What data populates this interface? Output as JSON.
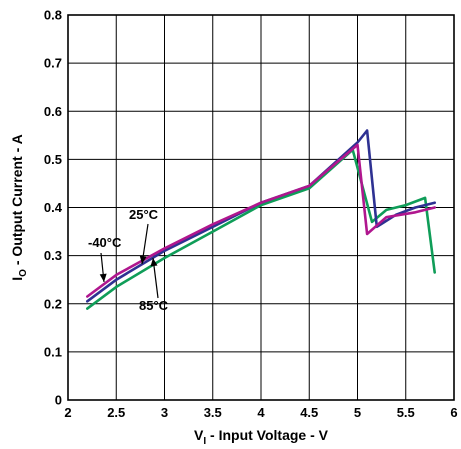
{
  "chart_data": {
    "type": "line",
    "xlabel_main": "V",
    "xlabel_sub": "I",
    "xlabel_rest": " - Input Voltage - V",
    "ylabel_main": "I",
    "ylabel_sub": "O",
    "ylabel_rest": " - Output Current - A",
    "xlim": [
      2,
      6
    ],
    "ylim": [
      0,
      0.8
    ],
    "x_ticks": [
      "2",
      "2.5",
      "3",
      "3.5",
      "4",
      "4.5",
      "5",
      "5.5",
      "6"
    ],
    "y_ticks": [
      "0",
      "0.1",
      "0.2",
      "0.3",
      "0.4",
      "0.5",
      "0.6",
      "0.7",
      "0.8"
    ],
    "grid": true,
    "series": [
      {
        "name": "-40°C",
        "color": "#b0168e",
        "x": [
          2.2,
          2.5,
          3.0,
          3.5,
          4.0,
          4.5,
          5.0,
          5.1,
          5.3,
          5.6,
          5.8
        ],
        "y": [
          0.215,
          0.26,
          0.315,
          0.365,
          0.41,
          0.445,
          0.53,
          0.345,
          0.38,
          0.39,
          0.4
        ]
      },
      {
        "name": "25°C",
        "color": "#2e3192",
        "x": [
          2.2,
          2.5,
          3.0,
          3.5,
          4.0,
          4.5,
          5.0,
          5.1,
          5.2,
          5.4,
          5.6,
          5.8
        ],
        "y": [
          0.205,
          0.25,
          0.31,
          0.36,
          0.41,
          0.445,
          0.535,
          0.56,
          0.36,
          0.385,
          0.4,
          0.41
        ]
      },
      {
        "name": "85°C",
        "color": "#0f9d58",
        "x": [
          2.2,
          2.5,
          3.0,
          3.5,
          4.0,
          4.5,
          4.95,
          5.15,
          5.3,
          5.5,
          5.7,
          5.8
        ],
        "y": [
          0.19,
          0.235,
          0.295,
          0.35,
          0.405,
          0.44,
          0.52,
          0.37,
          0.395,
          0.405,
          0.42,
          0.265
        ]
      }
    ],
    "annotations": [
      {
        "text": "-40°C",
        "series": "-40°C"
      },
      {
        "text": "25°C",
        "series": "25°C"
      },
      {
        "text": "85°C",
        "series": "85°C"
      }
    ]
  }
}
